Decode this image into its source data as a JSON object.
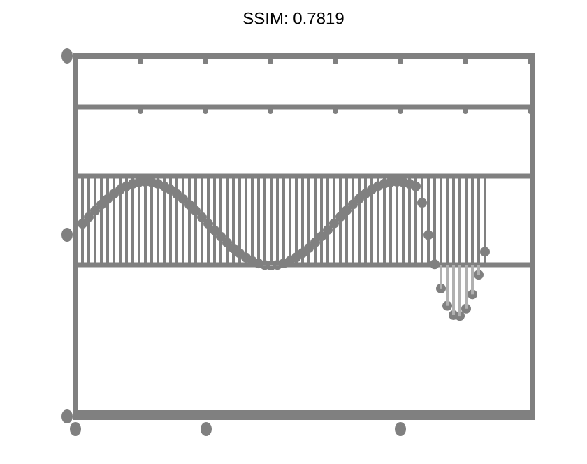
{
  "title": "SSIM: 0.7819"
}
